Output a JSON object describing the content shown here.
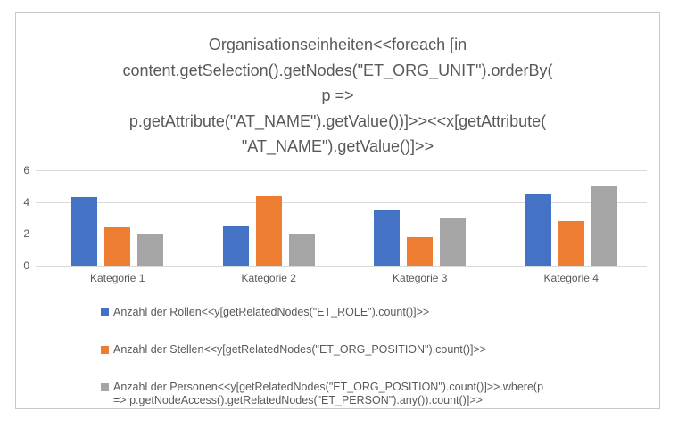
{
  "chart_data": {
    "type": "bar",
    "title": "Organisationseinheiten<<foreach [in content.getSelection().getNodes(\"ET_ORG_UNIT\").orderBy(p => p.getAttribute(\"AT_NAME\").getValue())]>><<x[getAttribute(\"AT_NAME\").getValue()]>>",
    "title_lines": [
      "Organisationseinheiten<<foreach [in",
      "content.getSelection().getNodes(\"ET_ORG_UNIT\").orderBy(",
      "p =>",
      "p.getAttribute(\"AT_NAME\").getValue())]>><<x[getAttribute(",
      "\"AT_NAME\").getValue()]>>"
    ],
    "categories": [
      "Kategorie 1",
      "Kategorie 2",
      "Kategorie 3",
      "Kategorie 4"
    ],
    "series": [
      {
        "name": "Anzahl der Rollen<<y[getRelatedNodes(\"ET_ROLE\").count()]>>",
        "color": "#4472C4",
        "values": [
          4.3,
          2.5,
          3.5,
          4.5
        ]
      },
      {
        "name": "Anzahl der Stellen<<y[getRelatedNodes(\"ET_ORG_POSITION\").count()]>>",
        "color": "#ED7D31",
        "values": [
          2.4,
          4.4,
          1.8,
          2.8
        ]
      },
      {
        "name": "Anzahl der Personen<<y[getRelatedNodes(\"ET_ORG_POSITION\").count()]>>.where(p => p.getNodeAccess().getRelatedNodes(\"ET_PERSON\").any()).count()]>>",
        "color": "#A5A5A5",
        "values": [
          2,
          2,
          3,
          5
        ]
      }
    ],
    "legend": [
      {
        "color": "#4472C4",
        "lines": [
          "Anzahl der Rollen<<y[getRelatedNodes(\"ET_ROLE\").count()]>>"
        ]
      },
      {
        "color": "#ED7D31",
        "lines": [
          "Anzahl der Stellen<<y[getRelatedNodes(\"ET_ORG_POSITION\").count()]>>"
        ]
      },
      {
        "color": "#A5A5A5",
        "lines": [
          "Anzahl der Personen<<y[getRelatedNodes(\"ET_ORG_POSITION\").count()]>>.where(p",
          "=> p.getNodeAccess().getRelatedNodes(\"ET_PERSON\").any()).count()]>>"
        ]
      }
    ],
    "y_ticks": [
      "0",
      "2",
      "4",
      "6"
    ],
    "ylim": [
      0,
      6
    ],
    "grid": true,
    "legend_position": "bottom-left",
    "xlabel": "",
    "ylabel": "",
    "colors": {
      "text": "#595959",
      "gridline": "#D9D9D9",
      "frame_border": "#C9C9C9",
      "background": "#FFFFFF"
    }
  }
}
